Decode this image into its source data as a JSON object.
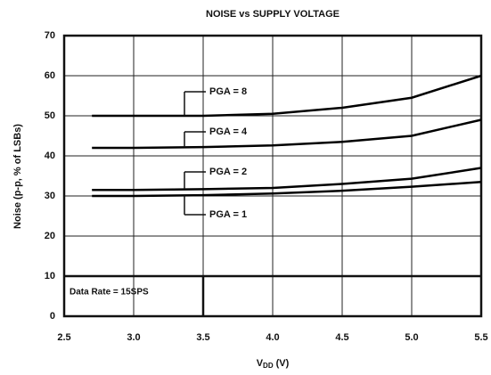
{
  "chart_data": {
    "type": "line",
    "title": "NOISE vs SUPPLY VOLTAGE",
    "ylabel": "Noise (p-p, % of LSBs)",
    "xlabel": {
      "main": "V",
      "sub": "DD",
      "unit": "(V)"
    },
    "annotation": "Data Rate = 15SPS",
    "x": [
      2.7,
      3.0,
      3.5,
      4.0,
      4.5,
      5.0,
      5.5
    ],
    "series": [
      {
        "name": "PGA = 8",
        "color": "#000000",
        "values": [
          50,
          50,
          50,
          50.5,
          52,
          54.5,
          60
        ]
      },
      {
        "name": "PGA = 4",
        "color": "#000000",
        "values": [
          42,
          42,
          42.2,
          42.6,
          43.5,
          45,
          49
        ]
      },
      {
        "name": "PGA = 2",
        "color": "#000000",
        "values": [
          31.5,
          31.5,
          31.7,
          32,
          33,
          34.3,
          37
        ]
      },
      {
        "name": "PGA = 1",
        "color": "#000000",
        "values": [
          30,
          30,
          30.2,
          30.6,
          31.3,
          32.3,
          33.5
        ]
      }
    ],
    "xlim": [
      2.5,
      5.5
    ],
    "xticks": [
      2.5,
      {
        "value": 3,
        "label": "3.0"
      },
      3.5,
      {
        "value": 4,
        "label": "4.0"
      },
      4.5,
      {
        "value": 5,
        "label": "5.0"
      },
      5.5
    ],
    "ylim": [
      0,
      70
    ],
    "yticks": [
      0,
      10,
      20,
      30,
      40,
      50,
      60,
      70
    ],
    "grid": true
  }
}
